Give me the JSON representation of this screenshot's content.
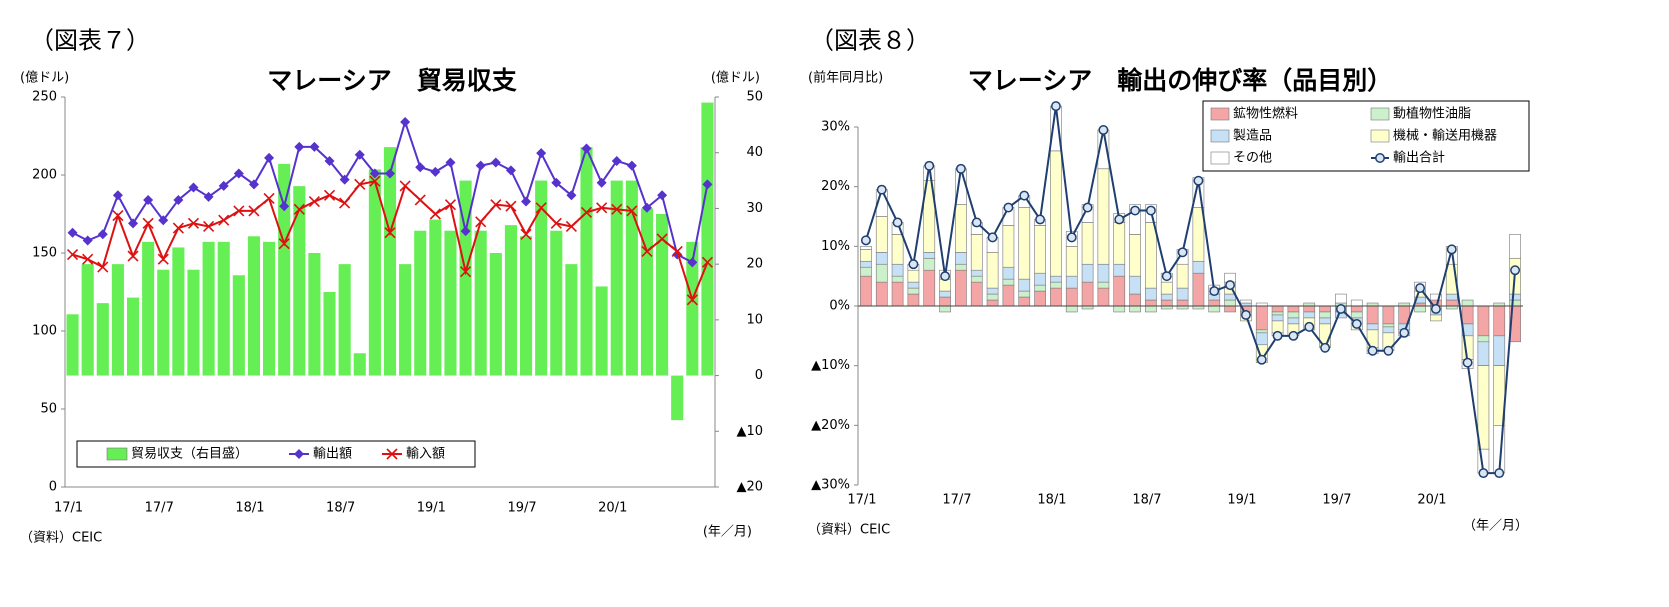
{
  "chart_data": [
    {
      "type": "bar",
      "figure_label": "（図表７）",
      "title": "マレーシア　貿易収支",
      "ylabel": "(億ドル)",
      "y2label": "(億ドル)",
      "xlabel": "(年／月)",
      "source": "（資料）CEIC",
      "categories": [
        "17/1",
        null,
        null,
        null,
        null,
        null,
        "17/7",
        null,
        null,
        null,
        null,
        null,
        "18/1",
        null,
        null,
        null,
        null,
        null,
        "18/7",
        null,
        null,
        null,
        null,
        null,
        "19/1",
        null,
        null,
        null,
        null,
        null,
        "19/7",
        null,
        null,
        null,
        null,
        null,
        "20/1",
        null,
        null,
        null,
        null,
        null,
        null
      ],
      "ylim": [
        0,
        250
      ],
      "yticks": [
        0,
        50,
        100,
        150,
        200,
        250
      ],
      "y2lim": [
        -20,
        50
      ],
      "y2ticks": [
        {
          "value": -20,
          "label": "▲20"
        },
        {
          "value": -10,
          "label": "▲10"
        },
        0,
        10,
        20,
        30,
        40,
        50
      ],
      "legend": "lower left",
      "series": [
        {
          "name": "貿易収支（右目盛）",
          "type": "bar",
          "axis": "y2",
          "color": "#66ee55",
          "values": [
            11,
            20,
            13,
            20,
            14,
            24,
            19,
            23,
            19,
            24,
            24,
            18,
            25,
            24,
            38,
            34,
            22,
            15,
            20,
            4,
            37,
            41,
            20,
            26,
            28,
            26,
            35,
            26,
            22,
            27,
            25,
            35,
            26,
            20,
            41,
            16,
            35,
            35,
            30,
            29,
            -8,
            24,
            49
          ]
        },
        {
          "name": "輸出額",
          "type": "line",
          "marker": "diamond",
          "color": "#5533cc",
          "values": [
            163,
            158,
            162,
            187,
            169,
            184,
            171,
            184,
            192,
            186,
            193,
            201,
            194,
            211,
            180,
            218,
            218,
            209,
            197,
            213,
            201,
            201,
            234,
            205,
            202,
            208,
            164,
            206,
            208,
            203,
            183,
            214,
            195,
            187,
            217,
            195,
            209,
            206,
            179,
            187,
            149,
            144,
            194
          ]
        },
        {
          "name": "輸入額",
          "type": "line",
          "marker": "x",
          "color": "#dd1111",
          "values": [
            149,
            146,
            141,
            174,
            148,
            169,
            146,
            166,
            169,
            167,
            171,
            177,
            177,
            185,
            156,
            178,
            183,
            187,
            182,
            194,
            196,
            163,
            193,
            184,
            175,
            181,
            138,
            170,
            181,
            180,
            162,
            179,
            169,
            167,
            176,
            179,
            178,
            177,
            151,
            159,
            151,
            120,
            144
          ]
        }
      ]
    },
    {
      "type": "stacked_bar",
      "figure_label": "（図表８）",
      "title": "マレーシア　輸出の伸び率（品目別）",
      "ylabel": "(前年同月比)",
      "xlabel": "（年／月）",
      "source": "（資料）CEIC",
      "categories": [
        "17/1",
        null,
        null,
        null,
        null,
        null,
        "17/7",
        null,
        null,
        null,
        null,
        null,
        "18/1",
        null,
        null,
        null,
        null,
        null,
        "18/7",
        null,
        null,
        null,
        null,
        null,
        "19/1",
        null,
        null,
        null,
        null,
        null,
        "19/7",
        null,
        null,
        null,
        null,
        null,
        "20/1",
        null,
        null,
        null,
        null,
        null
      ],
      "ylim": [
        -30,
        30
      ],
      "yticks": [
        {
          "value": -30,
          "label": "▲30%"
        },
        {
          "value": -20,
          "label": "▲20%"
        },
        {
          "value": -10,
          "label": "▲10%"
        },
        {
          "value": 0,
          "label": "0%"
        },
        {
          "value": 10,
          "label": "10%"
        },
        {
          "value": 20,
          "label": "20%"
        },
        {
          "value": 30,
          "label": "30%"
        }
      ],
      "legend": "upper right",
      "series": [
        {
          "name": "鉱物性燃料",
          "type": "bar",
          "color": "#f4a6a6",
          "values": [
            5,
            4,
            4,
            2,
            6,
            1.5,
            6,
            4,
            1,
            3.5,
            1.5,
            2.5,
            3,
            3,
            4,
            3,
            5,
            2,
            1,
            1,
            1,
            5.5,
            1,
            -1,
            -1,
            -4,
            -1,
            -1,
            -1,
            -1,
            -1,
            -1,
            -3,
            -3,
            -3,
            0.5,
            1,
            1,
            -3,
            -5,
            -5,
            -6
          ]
        },
        {
          "name": "動植物性油脂",
          "type": "bar",
          "color": "#ccf0cc",
          "values": [
            1.5,
            3,
            1,
            1,
            2,
            -1,
            1,
            1,
            1,
            1,
            1,
            1,
            1,
            -1,
            -0.5,
            1,
            -1,
            -1,
            -1,
            -0.5,
            -0.5,
            -0.5,
            -1,
            1,
            -0.5,
            -0.5,
            -0.5,
            -1,
            0.5,
            -1,
            0.5,
            -1,
            0.5,
            -0.5,
            0.5,
            -1,
            -0.5,
            -0.5,
            1,
            -1,
            0.5,
            1
          ]
        },
        {
          "name": "製造品",
          "type": "bar",
          "color": "#c6e0f5",
          "values": [
            1,
            2,
            2,
            1,
            1,
            1,
            2,
            1,
            1,
            2,
            2,
            2,
            1,
            2,
            3,
            3,
            2,
            3,
            2,
            1,
            2,
            2,
            1,
            1,
            0.5,
            -2,
            -1,
            -1,
            -1,
            -1,
            -1,
            -1,
            -1,
            -1,
            -1,
            1,
            -1,
            1,
            -2,
            -4,
            -5,
            1
          ]
        },
        {
          "name": "機械・輸送用機器",
          "type": "bar",
          "color": "#ffffcc",
          "values": [
            2,
            6,
            5,
            2,
            12,
            2,
            8,
            6,
            6,
            7,
            12,
            8,
            21,
            5,
            7,
            16,
            7,
            7,
            11,
            2,
            4,
            9,
            1,
            2,
            -1,
            -3,
            -2,
            -2,
            -2,
            -4,
            0,
            -1,
            -3,
            -3,
            -1,
            1,
            -1,
            5,
            -4,
            -14,
            -10,
            6
          ]
        },
        {
          "name": "その他",
          "type": "bar",
          "color": "#ffffff",
          "values": [
            0.5,
            4.5,
            2,
            1,
            2.5,
            1.5,
            6,
            2,
            2.5,
            3,
            2,
            1,
            7.5,
            2.5,
            3,
            6.5,
            1.5,
            5,
            3,
            1.5,
            2.5,
            5,
            0.5,
            1.5,
            0.5,
            0.5,
            -0.5,
            0,
            0,
            0,
            1.5,
            1,
            -1,
            0,
            0,
            1.5,
            1,
            3,
            -1.5,
            -4,
            -8,
            4
          ]
        },
        {
          "name": "輸出合計",
          "type": "line",
          "marker": "circle",
          "color": "#1f3f6f",
          "values": [
            11,
            19.5,
            14,
            7,
            23.5,
            5,
            23,
            14,
            11.5,
            16.5,
            18.5,
            14.5,
            33.5,
            11.5,
            16.5,
            29.5,
            14.5,
            16,
            16,
            5,
            9,
            21,
            2.5,
            3.5,
            -1.5,
            -9,
            -5,
            -5,
            -3.5,
            -7,
            -0.5,
            -3,
            -7.5,
            -7.5,
            -4.5,
            3,
            -0.5,
            9.5,
            -9.5,
            -28,
            -28,
            6
          ]
        }
      ]
    }
  ]
}
